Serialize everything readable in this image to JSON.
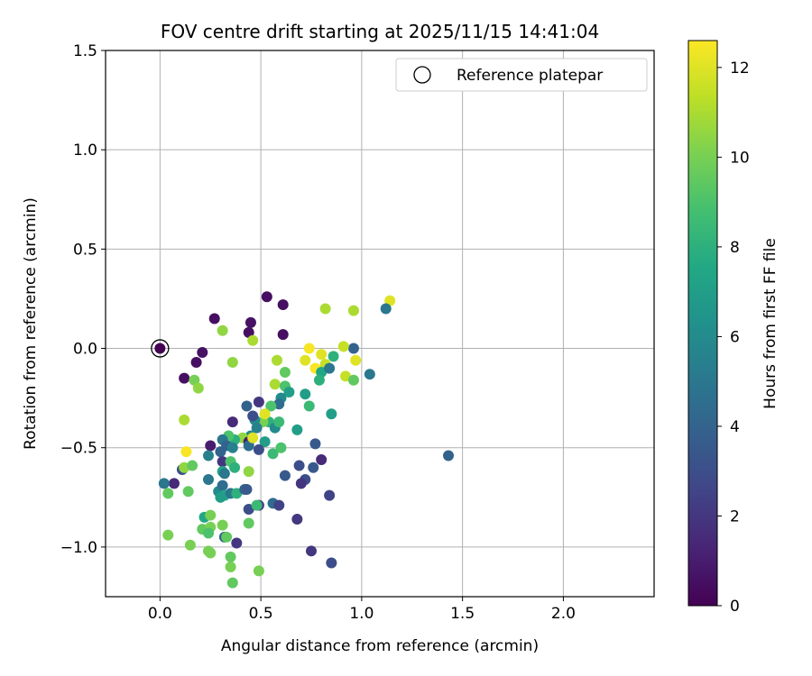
{
  "chart_data": {
    "type": "scatter",
    "title": "FOV centre drift starting at 2025/11/15 14:41:04",
    "xlabel": "Angular distance from reference (arcmin)",
    "ylabel": "Rotation from reference (arcmin)",
    "xlim": [
      -0.27,
      2.45
    ],
    "ylim": [
      -1.25,
      1.5
    ],
    "xticks": [
      0.0,
      0.5,
      1.0,
      1.5,
      2.0
    ],
    "xtick_labels": [
      "0.0",
      "0.5",
      "1.0",
      "1.5",
      "2.0"
    ],
    "yticks": [
      -1.0,
      -0.5,
      0.0,
      0.5,
      1.0,
      1.5
    ],
    "ytick_labels": [
      "−1.0",
      "−0.5",
      "0.0",
      "0.5",
      "1.0",
      "1.5"
    ],
    "grid": true,
    "legend": {
      "position": "top-right",
      "entries": [
        "Reference platepar"
      ]
    },
    "reference_point": {
      "x": 0.0,
      "y": 0.0,
      "t": 0.0
    },
    "colorbar": {
      "label": "Hours from first FF file",
      "colormap": "viridis",
      "range": [
        0,
        12.6
      ],
      "ticks": [
        0,
        2,
        4,
        6,
        8,
        10,
        12
      ],
      "tick_labels": [
        "0",
        "2",
        "4",
        "6",
        "8",
        "10",
        "12"
      ]
    },
    "points": [
      {
        "x": 0.53,
        "y": 0.26,
        "t": 0.5
      },
      {
        "x": 0.61,
        "y": 0.22,
        "t": 0.5
      },
      {
        "x": 0.27,
        "y": 0.15,
        "t": 0.5
      },
      {
        "x": 0.45,
        "y": 0.13,
        "t": 0.6
      },
      {
        "x": 0.44,
        "y": 0.08,
        "t": 0.5
      },
      {
        "x": 0.61,
        "y": 0.07,
        "t": 0.5
      },
      {
        "x": 0.21,
        "y": -0.02,
        "t": 0.6
      },
      {
        "x": 0.18,
        "y": -0.07,
        "t": 0.5
      },
      {
        "x": 0.12,
        "y": -0.15,
        "t": 0.5
      },
      {
        "x": 0.31,
        "y": 0.09,
        "t": 10.5
      },
      {
        "x": 0.46,
        "y": 0.04,
        "t": 11.0
      },
      {
        "x": 0.82,
        "y": 0.2,
        "t": 11.0
      },
      {
        "x": 0.96,
        "y": 0.19,
        "t": 11.0
      },
      {
        "x": 1.14,
        "y": 0.24,
        "t": 12.0
      },
      {
        "x": 1.12,
        "y": 0.2,
        "t": 5.0
      },
      {
        "x": 0.96,
        "y": 0.0,
        "t": 4.0
      },
      {
        "x": 0.74,
        "y": 0.0,
        "t": 12.5
      },
      {
        "x": 0.8,
        "y": -0.03,
        "t": 12.0
      },
      {
        "x": 0.91,
        "y": 0.01,
        "t": 11.5
      },
      {
        "x": 0.97,
        "y": -0.06,
        "t": 12.0
      },
      {
        "x": 0.72,
        "y": -0.06,
        "t": 12.0
      },
      {
        "x": 0.77,
        "y": -0.1,
        "t": 12.5
      },
      {
        "x": 0.82,
        "y": -0.08,
        "t": 11.5
      },
      {
        "x": 0.86,
        "y": -0.04,
        "t": 8.0
      },
      {
        "x": 0.8,
        "y": -0.12,
        "t": 7.5
      },
      {
        "x": 0.84,
        "y": -0.1,
        "t": 5.0
      },
      {
        "x": 0.92,
        "y": -0.14,
        "t": 11.5
      },
      {
        "x": 0.96,
        "y": -0.16,
        "t": 9.5
      },
      {
        "x": 1.04,
        "y": -0.13,
        "t": 5.0
      },
      {
        "x": 0.79,
        "y": -0.16,
        "t": 8.0
      },
      {
        "x": 0.36,
        "y": -0.07,
        "t": 10.5
      },
      {
        "x": 0.17,
        "y": -0.16,
        "t": 10.0
      },
      {
        "x": 0.19,
        "y": -0.2,
        "t": 10.5
      },
      {
        "x": 0.58,
        "y": -0.06,
        "t": 11.0
      },
      {
        "x": 0.62,
        "y": -0.12,
        "t": 9.5
      },
      {
        "x": 0.57,
        "y": -0.18,
        "t": 11.0
      },
      {
        "x": 0.62,
        "y": -0.19,
        "t": 9.0
      },
      {
        "x": 0.64,
        "y": -0.22,
        "t": 7.0
      },
      {
        "x": 0.6,
        "y": -0.25,
        "t": 6.0
      },
      {
        "x": 0.59,
        "y": -0.28,
        "t": 4.5
      },
      {
        "x": 0.72,
        "y": -0.23,
        "t": 7.0
      },
      {
        "x": 0.74,
        "y": -0.29,
        "t": 8.5
      },
      {
        "x": 0.55,
        "y": -0.29,
        "t": 9.0
      },
      {
        "x": 0.49,
        "y": -0.27,
        "t": 2.0
      },
      {
        "x": 0.43,
        "y": -0.29,
        "t": 4.0
      },
      {
        "x": 0.36,
        "y": -0.37,
        "t": 1.5
      },
      {
        "x": 0.12,
        "y": -0.36,
        "t": 11.0
      },
      {
        "x": 0.13,
        "y": -0.52,
        "t": 12.5
      },
      {
        "x": 0.85,
        "y": -0.33,
        "t": 7.0
      },
      {
        "x": 0.68,
        "y": -0.41,
        "t": 7.0
      },
      {
        "x": 0.54,
        "y": -0.37,
        "t": 8.0
      },
      {
        "x": 0.51,
        "y": -0.37,
        "t": 10.0
      },
      {
        "x": 0.47,
        "y": -0.36,
        "t": 6.0
      },
      {
        "x": 0.46,
        "y": -0.34,
        "t": 3.0
      },
      {
        "x": 0.57,
        "y": -0.4,
        "t": 6.0
      },
      {
        "x": 0.59,
        "y": -0.37,
        "t": 8.5
      },
      {
        "x": 0.52,
        "y": -0.33,
        "t": 12.0
      },
      {
        "x": 0.48,
        "y": -0.4,
        "t": 5.5
      },
      {
        "x": 0.45,
        "y": -0.44,
        "t": 6.0
      },
      {
        "x": 0.41,
        "y": -0.45,
        "t": 10.5
      },
      {
        "x": 0.37,
        "y": -0.46,
        "t": 8.0
      },
      {
        "x": 0.34,
        "y": -0.44,
        "t": 9.0
      },
      {
        "x": 0.31,
        "y": -0.46,
        "t": 5.0
      },
      {
        "x": 0.33,
        "y": -0.49,
        "t": 4.0
      },
      {
        "x": 0.36,
        "y": -0.5,
        "t": 5.5
      },
      {
        "x": 0.25,
        "y": -0.49,
        "t": 1.0
      },
      {
        "x": 0.24,
        "y": -0.54,
        "t": 5.5
      },
      {
        "x": 0.3,
        "y": -0.52,
        "t": 4.0
      },
      {
        "x": 0.31,
        "y": -0.57,
        "t": 2.0
      },
      {
        "x": 0.44,
        "y": -0.47,
        "t": 1.0
      },
      {
        "x": 0.44,
        "y": -0.49,
        "t": 4.5
      },
      {
        "x": 0.46,
        "y": -0.45,
        "t": 12.0
      },
      {
        "x": 0.52,
        "y": -0.47,
        "t": 7.0
      },
      {
        "x": 0.49,
        "y": -0.51,
        "t": 3.0
      },
      {
        "x": 0.56,
        "y": -0.53,
        "t": 8.5
      },
      {
        "x": 0.6,
        "y": -0.5,
        "t": 9.0
      },
      {
        "x": 0.77,
        "y": -0.48,
        "t": 3.5
      },
      {
        "x": 0.8,
        "y": -0.56,
        "t": 1.5
      },
      {
        "x": 0.76,
        "y": -0.6,
        "t": 3.5
      },
      {
        "x": 0.69,
        "y": -0.59,
        "t": 3.0
      },
      {
        "x": 0.62,
        "y": -0.64,
        "t": 3.5
      },
      {
        "x": 0.72,
        "y": -0.66,
        "t": 3.0
      },
      {
        "x": 0.7,
        "y": -0.68,
        "t": 2.0
      },
      {
        "x": 0.84,
        "y": -0.74,
        "t": 2.5
      },
      {
        "x": 0.68,
        "y": -0.86,
        "t": 2.0
      },
      {
        "x": 0.75,
        "y": -1.02,
        "t": 2.0
      },
      {
        "x": 0.85,
        "y": -1.08,
        "t": 3.0
      },
      {
        "x": 1.43,
        "y": -0.54,
        "t": 4.0
      },
      {
        "x": 0.11,
        "y": -0.61,
        "t": 3.0
      },
      {
        "x": 0.12,
        "y": -0.6,
        "t": 10.5
      },
      {
        "x": 0.16,
        "y": -0.59,
        "t": 9.5
      },
      {
        "x": 0.07,
        "y": -0.68,
        "t": 1.5
      },
      {
        "x": 0.02,
        "y": -0.68,
        "t": 5.0
      },
      {
        "x": 0.04,
        "y": -0.73,
        "t": 9.5
      },
      {
        "x": 0.14,
        "y": -0.72,
        "t": 9.5
      },
      {
        "x": 0.24,
        "y": -0.66,
        "t": 5.0
      },
      {
        "x": 0.31,
        "y": -0.62,
        "t": 7.5
      },
      {
        "x": 0.32,
        "y": -0.63,
        "t": 5.0
      },
      {
        "x": 0.35,
        "y": -0.57,
        "t": 9.0
      },
      {
        "x": 0.37,
        "y": -0.6,
        "t": 8.0
      },
      {
        "x": 0.44,
        "y": -0.62,
        "t": 10.5
      },
      {
        "x": 0.29,
        "y": -0.72,
        "t": 6.0
      },
      {
        "x": 0.31,
        "y": -0.69,
        "t": 4.5
      },
      {
        "x": 0.32,
        "y": -0.74,
        "t": 7.5
      },
      {
        "x": 0.35,
        "y": -0.73,
        "t": 5.0
      },
      {
        "x": 0.38,
        "y": -0.73,
        "t": 8.0
      },
      {
        "x": 0.42,
        "y": -0.71,
        "t": 4.0
      },
      {
        "x": 0.43,
        "y": -0.71,
        "t": 3.5
      },
      {
        "x": 0.3,
        "y": -0.75,
        "t": 7.0
      },
      {
        "x": 0.49,
        "y": -0.79,
        "t": 2.0
      },
      {
        "x": 0.56,
        "y": -0.78,
        "t": 4.5
      },
      {
        "x": 0.59,
        "y": -0.79,
        "t": 2.5
      },
      {
        "x": 0.44,
        "y": -0.81,
        "t": 3.0
      },
      {
        "x": 0.48,
        "y": -0.79,
        "t": 8.5
      },
      {
        "x": 0.44,
        "y": -0.88,
        "t": 9.5
      },
      {
        "x": 0.22,
        "y": -0.85,
        "t": 7.5
      },
      {
        "x": 0.25,
        "y": -0.84,
        "t": 10.0
      },
      {
        "x": 0.21,
        "y": -0.91,
        "t": 9.5
      },
      {
        "x": 0.25,
        "y": -0.9,
        "t": 10.0
      },
      {
        "x": 0.24,
        "y": -0.93,
        "t": 9.0
      },
      {
        "x": 0.31,
        "y": -0.89,
        "t": 10.0
      },
      {
        "x": 0.32,
        "y": -0.95,
        "t": 4.0
      },
      {
        "x": 0.33,
        "y": -0.95,
        "t": 9.5
      },
      {
        "x": 0.38,
        "y": -0.98,
        "t": 2.0
      },
      {
        "x": 0.15,
        "y": -0.99,
        "t": 10.0
      },
      {
        "x": 0.04,
        "y": -0.94,
        "t": 10.0
      },
      {
        "x": 0.24,
        "y": -1.02,
        "t": 10.0
      },
      {
        "x": 0.25,
        "y": -1.03,
        "t": 10.0
      },
      {
        "x": 0.35,
        "y": -1.05,
        "t": 9.5
      },
      {
        "x": 0.35,
        "y": -1.1,
        "t": 10.0
      },
      {
        "x": 0.36,
        "y": -1.18,
        "t": 9.5
      },
      {
        "x": 0.49,
        "y": -1.12,
        "t": 10.0
      }
    ]
  }
}
